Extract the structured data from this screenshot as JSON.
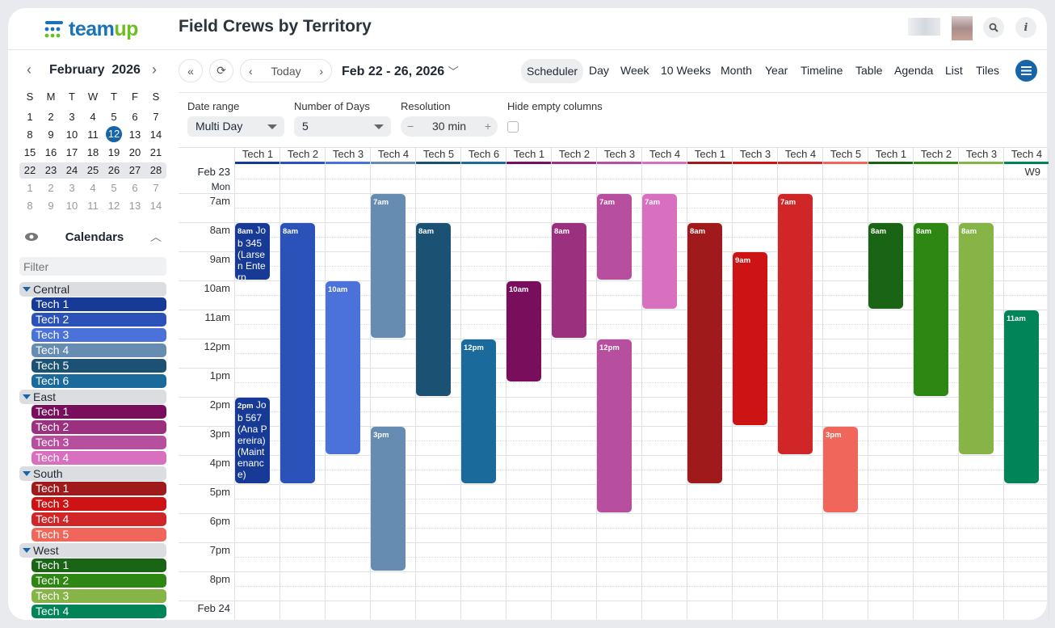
{
  "app": {
    "logo": "teamup",
    "title": "Field Crews by Territory"
  },
  "icons": {
    "search": "search-icon",
    "info": "info-icon",
    "menu": "hamburger-menu-icon",
    "eye": "eye-icon",
    "refresh": "refresh-icon",
    "collapse": "double-chevron-left-icon"
  },
  "mini_calendar": {
    "month": "February",
    "year": "2026",
    "weekdays": [
      "S",
      "M",
      "T",
      "W",
      "T",
      "F",
      "S"
    ],
    "weeks": [
      [
        "1",
        "2",
        "3",
        "4",
        "5",
        "6",
        "7"
      ],
      [
        "8",
        "9",
        "10",
        "11",
        "12",
        "13",
        "14"
      ],
      [
        "15",
        "16",
        "17",
        "18",
        "19",
        "20",
        "21"
      ],
      [
        "22",
        "23",
        "24",
        "25",
        "26",
        "27",
        "28"
      ],
      [
        "1",
        "2",
        "3",
        "4",
        "5",
        "6",
        "7"
      ],
      [
        "8",
        "9",
        "10",
        "11",
        "12",
        "13",
        "14"
      ]
    ],
    "today": "12"
  },
  "sidebar": {
    "calendars_label": "Calendars",
    "filter_placeholder": "Filter",
    "groups": [
      {
        "name": "Central",
        "items": [
          {
            "label": "Tech 1",
            "color": "#163a96"
          },
          {
            "label": "Tech 2",
            "color": "#2b52b9"
          },
          {
            "label": "Tech 3",
            "color": "#4a72da"
          },
          {
            "label": "Tech 4",
            "color": "#668cb2"
          },
          {
            "label": "Tech 5",
            "color": "#1b5273"
          },
          {
            "label": "Tech 6",
            "color": "#1b6a9c"
          }
        ]
      },
      {
        "name": "East",
        "items": [
          {
            "label": "Tech 1",
            "color": "#790f5c"
          },
          {
            "label": "Tech 2",
            "color": "#9b307e"
          },
          {
            "label": "Tech 3",
            "color": "#b84f9e"
          },
          {
            "label": "Tech 4",
            "color": "#d86fbf"
          }
        ]
      },
      {
        "name": "South",
        "items": [
          {
            "label": "Tech 1",
            "color": "#a0191b"
          },
          {
            "label": "Tech 3",
            "color": "#ce1315"
          },
          {
            "label": "Tech 4",
            "color": "#d12627"
          },
          {
            "label": "Tech 5",
            "color": "#f0665b"
          }
        ]
      },
      {
        "name": "West",
        "items": [
          {
            "label": "Tech 1",
            "color": "#1a6415"
          },
          {
            "label": "Tech 2",
            "color": "#2e8712"
          },
          {
            "label": "Tech 3",
            "color": "#86b447"
          },
          {
            "label": "Tech 4",
            "color": "#028459"
          }
        ]
      }
    ]
  },
  "toolbar": {
    "today": "Today",
    "range": "Feb 22 - 26, 2026",
    "active_view": "Scheduler",
    "views": [
      "Scheduler",
      "Day",
      "Week",
      "10 Weeks",
      "Month",
      "Year",
      "Timeline",
      "Table",
      "Agenda",
      "List",
      "Tiles"
    ]
  },
  "options": {
    "date_range_label": "Date range",
    "date_range_value": "Multi Day",
    "days_label": "Number of Days",
    "days_value": "5",
    "resolution_label": "Resolution",
    "resolution_value": "30 min",
    "hide_empty_label": "Hide empty columns",
    "hide_empty_checked": false
  },
  "grid": {
    "date": "Feb 23",
    "weekday": "Mon",
    "week": "W9",
    "next_date": "Feb 24",
    "hours": [
      "7am",
      "8am",
      "9am",
      "10am",
      "11am",
      "12pm",
      "1pm",
      "2pm",
      "3pm",
      "4pm",
      "5pm",
      "6pm",
      "7pm",
      "8pm"
    ],
    "columns": [
      "Tech 1",
      "Tech 2",
      "Tech 3",
      "Tech 4",
      "Tech 5",
      "Tech 6",
      "Tech 1",
      "Tech 2",
      "Tech 3",
      "Tech 4",
      "Tech 1",
      "Tech 3",
      "Tech 4",
      "Tech 5",
      "Tech 1",
      "Tech 2",
      "Tech 3",
      "Tech 4"
    ],
    "column_colors": [
      "#163a96",
      "#2b52b9",
      "#4a72da",
      "#668cb2",
      "#1b5273",
      "#1b6a9c",
      "#790f5c",
      "#9b307e",
      "#b84f9e",
      "#d86fbf",
      "#a0191b",
      "#ce1315",
      "#d12627",
      "#f0665b",
      "#1a6415",
      "#2e8712",
      "#86b447",
      "#028459"
    ],
    "events": [
      {
        "col": 0,
        "start": 8,
        "end": 10,
        "time": "8am",
        "title": "Job 345 (Larsen Enterp"
      },
      {
        "col": 0,
        "start": 14,
        "end": 17,
        "time": "2pm",
        "title": "Job 567 (Ana Pereira) (Maintenance)"
      },
      {
        "col": 1,
        "start": 8,
        "end": 17,
        "time": "8am",
        "title": ""
      },
      {
        "col": 2,
        "start": 10,
        "end": 16,
        "time": "10am",
        "title": ""
      },
      {
        "col": 3,
        "start": 7,
        "end": 12,
        "time": "7am",
        "title": ""
      },
      {
        "col": 3,
        "start": 15,
        "end": 20,
        "time": "3pm",
        "title": ""
      },
      {
        "col": 4,
        "start": 8,
        "end": 14,
        "time": "8am",
        "title": ""
      },
      {
        "col": 5,
        "start": 12,
        "end": 17,
        "time": "12pm",
        "title": ""
      },
      {
        "col": 6,
        "start": 10,
        "end": 13.5,
        "time": "10am",
        "title": ""
      },
      {
        "col": 7,
        "start": 8,
        "end": 12,
        "time": "8am",
        "title": ""
      },
      {
        "col": 8,
        "start": 7,
        "end": 10,
        "time": "7am",
        "title": ""
      },
      {
        "col": 8,
        "start": 12,
        "end": 18,
        "time": "12pm",
        "title": ""
      },
      {
        "col": 9,
        "start": 7,
        "end": 11,
        "time": "7am",
        "title": ""
      },
      {
        "col": 10,
        "start": 8,
        "end": 17,
        "time": "8am",
        "title": ""
      },
      {
        "col": 11,
        "start": 9,
        "end": 15,
        "time": "9am",
        "title": ""
      },
      {
        "col": 12,
        "start": 7,
        "end": 16,
        "time": "7am",
        "title": ""
      },
      {
        "col": 13,
        "start": 15,
        "end": 18,
        "time": "3pm",
        "title": ""
      },
      {
        "col": 14,
        "start": 8,
        "end": 11,
        "time": "8am",
        "title": ""
      },
      {
        "col": 15,
        "start": 8,
        "end": 14,
        "time": "8am",
        "title": ""
      },
      {
        "col": 16,
        "start": 8,
        "end": 16,
        "time": "8am",
        "title": ""
      },
      {
        "col": 17,
        "start": 11,
        "end": 17,
        "time": "11am",
        "title": ""
      }
    ]
  }
}
